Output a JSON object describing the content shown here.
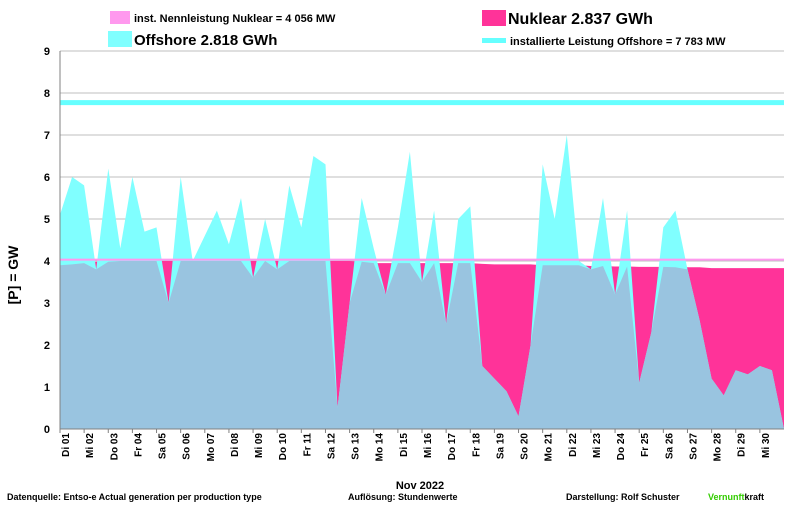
{
  "legend": {
    "nuclear_capacity_label": "inst. Nennleistung Nuklear =  4 056 MW",
    "nuclear_energy_label": "Nuklear 2.837 GWh",
    "offshore_energy_label": "Offshore 2.818 GWh",
    "offshore_capacity_label": "installierte Leistung Offshore  =  7 783 MW"
  },
  "footer": {
    "source": "Datenquelle: Entso-e  Actual generation per production type",
    "resolution": "Auflösung: Stundenwerte",
    "author_prefix": "Darstellung:  Rolf Schuster",
    "brand_part1": "Vernunft",
    "brand_part2": "kraft"
  },
  "colors": {
    "nuclear": "#FF3399",
    "offshore": "#80FFFF",
    "overlap": "#99C4E0",
    "nuclear_capacity": "#FF99EE",
    "offshore_capacity": "#66FFFF",
    "brand_green": "#33CC00"
  },
  "chart_data": {
    "type": "area",
    "xlabel": "Nov 2022",
    "ylabel": "[P]  =  GW",
    "ylim": [
      0,
      9
    ],
    "yticks": [
      0,
      1,
      2,
      3,
      4,
      5,
      6,
      7,
      8,
      9
    ],
    "grid": "horizontal",
    "legend_position": "top",
    "day_labels": [
      "Di 01",
      "Mi 02",
      "Do 03",
      "Fr 04",
      "Sa 05",
      "So 06",
      "Mo 07",
      "Di 08",
      "Mi 09",
      "Do 10",
      "Fr 11",
      "Sa 12",
      "So 13",
      "Mo 14",
      "Di 15",
      "Mi 16",
      "Do 17",
      "Fr 18",
      "Sa 19",
      "So 20",
      "Mo 21",
      "Di 22",
      "Mi 23",
      "Do 24",
      "Fr 25",
      "Sa 26",
      "So 27",
      "Mo 28",
      "Di 29",
      "Mi 30"
    ],
    "x": [
      1,
      1.5,
      2,
      2.5,
      3,
      3.5,
      4,
      4.5,
      5,
      5.5,
      6,
      6.5,
      7,
      7.5,
      8,
      8.5,
      9,
      9.5,
      10,
      10.5,
      11,
      11.5,
      12,
      12.5,
      13,
      13.5,
      14,
      14.5,
      15,
      15.5,
      16,
      16.5,
      17,
      17.5,
      18,
      18.5,
      19,
      19.5,
      20,
      20.5,
      21,
      21.5,
      22,
      22.5,
      23,
      23.5,
      24,
      24.5,
      25,
      25.5,
      26,
      26.5,
      27,
      27.5,
      28,
      28.5,
      29,
      29.5,
      30,
      30.5,
      31
    ],
    "series": [
      {
        "name": "Offshore 2.818 GWh",
        "values": [
          5.1,
          6.0,
          5.8,
          3.8,
          6.2,
          4.3,
          6.0,
          4.7,
          4.8,
          3.0,
          6.0,
          4.0,
          4.6,
          5.2,
          4.4,
          5.5,
          3.6,
          5.0,
          3.8,
          5.8,
          4.8,
          6.5,
          6.3,
          0.5,
          3.0,
          5.5,
          4.3,
          3.2,
          4.8,
          6.6,
          3.5,
          5.2,
          2.5,
          5.0,
          5.3,
          1.5,
          1.2,
          0.9,
          0.3,
          2.0,
          6.3,
          5.0,
          7.0,
          4.0,
          3.8,
          5.5,
          3.2,
          5.2,
          1.1,
          2.3,
          4.8,
          5.2,
          3.8,
          2.6,
          1.2,
          0.8,
          1.4,
          1.3,
          1.5,
          1.4,
          0.0
        ]
      },
      {
        "name": "Nuklear 2.837 GWh",
        "values": [
          3.9,
          3.92,
          3.95,
          3.98,
          3.98,
          4.0,
          4.0,
          4.0,
          4.0,
          4.0,
          4.0,
          4.0,
          4.0,
          4.0,
          4.0,
          4.0,
          4.0,
          4.0,
          4.0,
          4.0,
          4.0,
          4.0,
          4.0,
          4.0,
          4.0,
          3.98,
          3.95,
          3.95,
          3.95,
          3.95,
          3.95,
          3.95,
          3.95,
          3.95,
          3.95,
          3.93,
          3.92,
          3.92,
          3.92,
          3.92,
          3.9,
          3.9,
          3.9,
          3.9,
          3.88,
          3.88,
          3.87,
          3.87,
          3.86,
          3.86,
          3.86,
          3.85,
          3.85,
          3.85,
          3.83,
          3.83,
          3.83,
          3.83,
          3.83,
          3.83,
          3.83
        ]
      }
    ],
    "reference_lines": [
      {
        "name": "inst. Nennleistung Nuklear",
        "value": 4.056
      },
      {
        "name": "installierte Leistung Offshore",
        "value": 7.783
      }
    ]
  }
}
